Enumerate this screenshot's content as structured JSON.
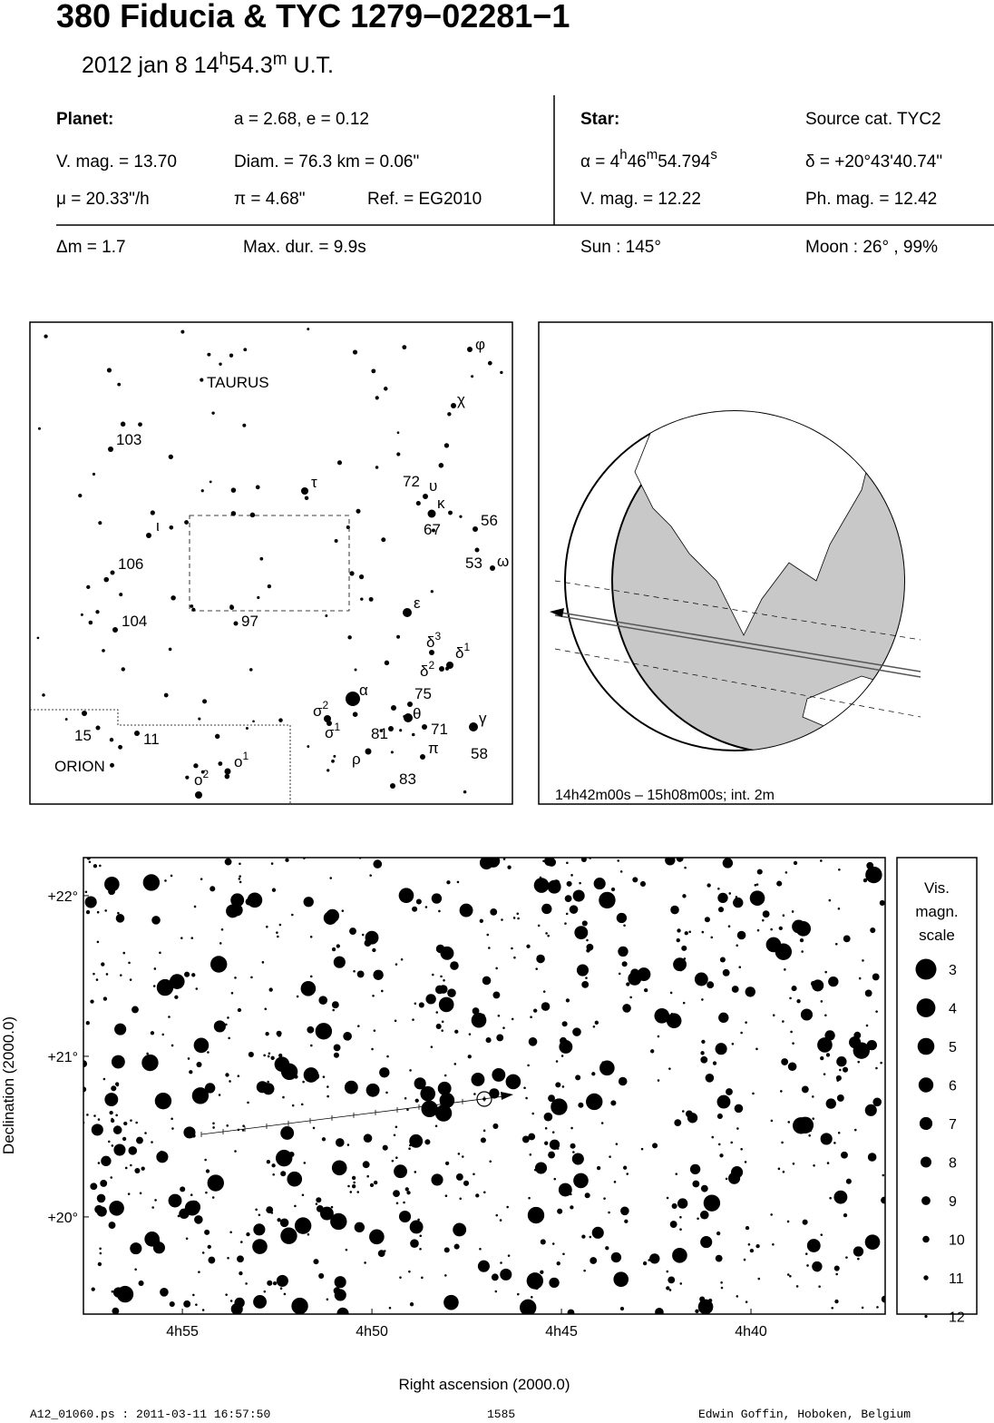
{
  "header": {
    "title": "380 Fiducia  &  TYC 1279−02281−1",
    "subtitle": [
      "2012 jan  8  14",
      "h",
      "54.3",
      "m",
      " U.T."
    ]
  },
  "info": {
    "planet_label": "Planet:",
    "a_e": "a = 2.68, e = 0.12",
    "star_label": "Star:",
    "source": "Source cat.  TYC2",
    "planet_vmag": "V. mag. = 13.70",
    "diam": "Diam. = 76.3 km = 0.06\"",
    "alpha": [
      "α =  4",
      "h",
      "46",
      "m",
      "54.794",
      "s"
    ],
    "delta": "δ = +20°43'40.74\"",
    "mu": "μ =  20.33\"/h",
    "pi": "π =  4.68\"",
    "ref": "Ref. = EG2010",
    "star_vmag": "V. mag. = 12.22",
    "phmag": "Ph. mag. = 12.42",
    "dm": "Δm = 1.7",
    "maxdur": "Max. dur. = 9.9s",
    "sun": "Sun : 145°",
    "moon": "Moon :  26° , 99%"
  },
  "finder": {
    "labels": [
      {
        "text": "TAURUS"
      },
      {
        "text": "103"
      },
      {
        "text": "τ"
      },
      {
        "text": "72"
      },
      {
        "text": "υ"
      },
      {
        "text": "κ"
      },
      {
        "text": "67"
      },
      {
        "text": "56"
      },
      {
        "text": "53"
      },
      {
        "text": "ω"
      },
      {
        "text": "ι"
      },
      {
        "text": "106"
      },
      {
        "text": "104"
      },
      {
        "text": "97"
      },
      {
        "text": "ε"
      },
      {
        "text": "δ",
        "sup": "3"
      },
      {
        "text": "δ",
        "sup": "1"
      },
      {
        "text": "δ",
        "sup": "2"
      },
      {
        "text": "75"
      },
      {
        "text": "α"
      },
      {
        "text": "σ",
        "sup": "2"
      },
      {
        "text": "θ"
      },
      {
        "text": "σ",
        "sup": "1"
      },
      {
        "text": "81"
      },
      {
        "text": "71"
      },
      {
        "text": "γ"
      },
      {
        "text": "ρ"
      },
      {
        "text": "π"
      },
      {
        "text": "58"
      },
      {
        "text": "83"
      },
      {
        "text": "15"
      },
      {
        "text": "11"
      },
      {
        "text": "ORION"
      },
      {
        "text": "ο",
        "sup": "1"
      },
      {
        "text": "ο",
        "sup": "2"
      },
      {
        "text": "φ"
      },
      {
        "text": "χ"
      }
    ]
  },
  "globe": {
    "caption": "14h42m00s – 15h08m00s; int.  2m"
  },
  "starchart": {
    "xlabel": "Right ascension (2000.0)",
    "ylabel": "Declination (2000.0)",
    "xlim": [
      57.61,
      36.46
    ],
    "ylim": [
      19.395,
      22.237
    ],
    "xticks": [
      {
        "value": 55,
        "label": "4h55"
      },
      {
        "value": 50,
        "label": "4h50"
      },
      {
        "value": 45,
        "label": "4h45"
      },
      {
        "value": 40,
        "label": "4h40"
      }
    ],
    "yticks": [
      {
        "value": 22,
        "label": "+22°"
      },
      {
        "value": 21,
        "label": "+21°"
      },
      {
        "value": 20,
        "label": "+20°"
      }
    ],
    "legend_title": [
      "Vis.",
      "magn.",
      "scale"
    ],
    "legend_mags": [
      3,
      4,
      5,
      6,
      7,
      8,
      9,
      10,
      11,
      12
    ]
  },
  "footer": {
    "file": "A12_01060.ps : 2011-03-11 16:57:50",
    "number": "1585",
    "author": "Edwin Goffin, Hoboken, Belgium"
  }
}
